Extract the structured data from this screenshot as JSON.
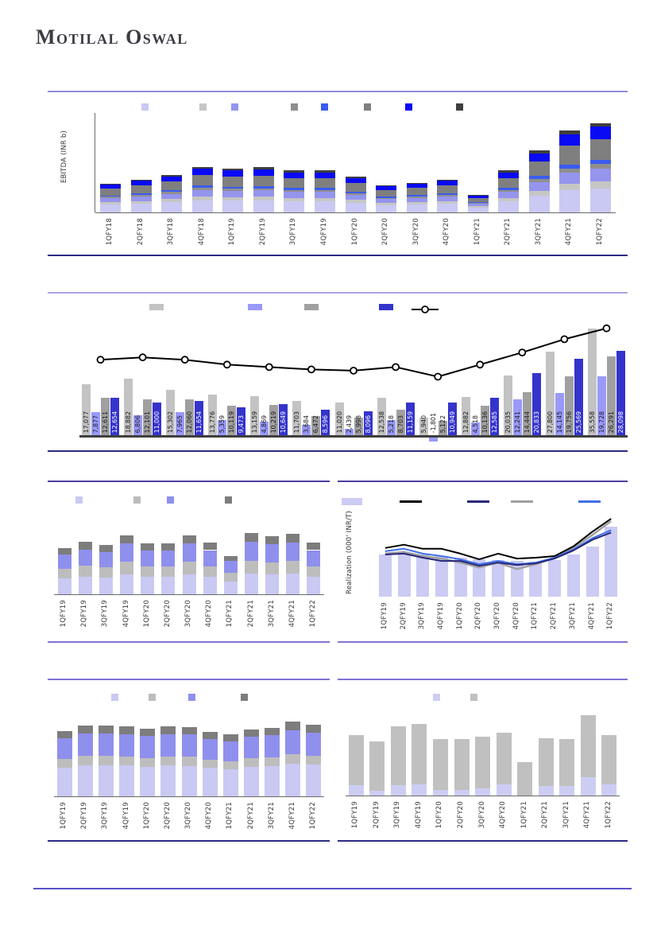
{
  "brand": {
    "name": "Motilal Oswal"
  },
  "chart_data": [
    {
      "id": "quarterly-ebitda-stacked",
      "type": "bar",
      "stacked": true,
      "title": "",
      "ylabel": "EBITDA (INR b)",
      "unit": "percent-of-plot-height (no y-axis ticks shown)",
      "grid": false,
      "legend_position": "top",
      "legend_swatches": [
        "#c9c9f3",
        "#c6c6c6",
        "#9595ee",
        "#8f8f8f",
        "#3a5cf0",
        "#7f7f7f",
        "#0a0af5",
        "#3f3f3f"
      ],
      "categories": [
        "1QFY18",
        "2QFY18",
        "3QFY18",
        "4QFY18",
        "1QFY19",
        "2QFY19",
        "3QFY19",
        "4QFY19",
        "1QFY20",
        "2QFY20",
        "3QFY20",
        "4QFY20",
        "1QFY21",
        "2QFY21",
        "3QFY21",
        "4QFY21",
        "1QFY22"
      ],
      "series": [
        {
          "name": "series-1",
          "color": "#c9c9f3",
          "values": [
            7.8,
            8.9,
            10.3,
            12.4,
            11.9,
            12.2,
            11.3,
            11.3,
            9.7,
            7.3,
            8.1,
            8.9,
            4.9,
            11.3,
            16.7,
            22.1,
            24.3
          ]
        },
        {
          "name": "series-2",
          "color": "#c6c6c6",
          "values": [
            2.3,
            2.6,
            3.0,
            3.7,
            3.5,
            3.6,
            3.4,
            3.4,
            2.9,
            2.2,
            2.4,
            2.6,
            1.4,
            3.4,
            5.0,
            6.6,
            7.2
          ]
        },
        {
          "name": "series-3",
          "color": "#9595ee",
          "values": [
            4.1,
            4.6,
            5.3,
            6.4,
            6.2,
            6.3,
            5.9,
            5.9,
            5.0,
            3.8,
            4.2,
            4.6,
            2.5,
            5.9,
            8.7,
            11.5,
            12.6
          ]
        },
        {
          "name": "series-4",
          "color": "#8f8f8f",
          "values": [
            1.5,
            1.7,
            1.9,
            2.3,
            2.2,
            2.3,
            2.1,
            2.1,
            1.8,
            1.4,
            1.5,
            1.7,
            0.9,
            2.1,
            3.1,
            4.1,
            4.5
          ]
        },
        {
          "name": "series-5",
          "color": "#3a5cf0",
          "values": [
            1.5,
            1.7,
            1.9,
            2.3,
            2.2,
            2.3,
            2.1,
            2.1,
            1.8,
            1.4,
            1.5,
            1.7,
            0.9,
            2.1,
            3.1,
            4.1,
            4.5
          ]
        },
        {
          "name": "series-6",
          "color": "#7f7f7f",
          "values": [
            6.7,
            7.6,
            8.7,
            10.6,
            10.1,
            10.4,
            9.7,
            9.7,
            8.3,
            6.2,
            6.9,
            7.6,
            4.1,
            9.7,
            14.3,
            18.9,
            20.7
          ]
        },
        {
          "name": "series-7",
          "color": "#0a0af5",
          "values": [
            4.1,
            4.6,
            5.3,
            6.4,
            6.2,
            6.3,
            5.9,
            5.9,
            5.0,
            3.8,
            4.2,
            4.6,
            2.5,
            5.9,
            8.7,
            11.5,
            12.6
          ]
        },
        {
          "name": "series-8",
          "color": "#3f3f3f",
          "values": [
            1.2,
            1.3,
            1.5,
            1.8,
            1.8,
            1.8,
            1.7,
            1.7,
            1.4,
            1.1,
            1.2,
            1.3,
            0.7,
            1.7,
            2.5,
            3.3,
            3.6
          ]
        }
      ]
    },
    {
      "id": "quarterly-grouped-bars-with-trend-line",
      "type": "bar+line",
      "stacked": false,
      "categories_visible": false,
      "value_labels": true,
      "axis_max": 40000,
      "legend_position": "top",
      "legend_swatches": [
        "#c3c3c3",
        "#9999fa",
        "#a0a0a0",
        "#3434cc"
      ],
      "line_legend": {
        "color": "#000000",
        "marker": "open-circle"
      },
      "series_colors": [
        "#c3c3c3",
        "#9999fa",
        "#a0a0a0",
        "#3434cc"
      ],
      "groups": [
        [
          17077,
          7877,
          12611,
          12654
        ],
        [
          18882,
          6806,
          12101,
          11000
        ],
        [
          15302,
          7965,
          12060,
          11654
        ],
        [
          13776,
          5359,
          10119,
          9473
        ],
        [
          13159,
          4869,
          10219,
          10649
        ],
        [
          11703,
          3684,
          6472,
          8596
        ],
        [
          11020,
          2439,
          5998,
          8096
        ],
        [
          12538,
          5218,
          8703,
          11159
        ],
        [
          5940,
          -1801,
          5122,
          10949
        ],
        [
          12882,
          4518,
          10136,
          12585
        ],
        [
          20035,
          12241,
          14444,
          20833
        ],
        [
          27800,
          14145,
          19756,
          25569
        ],
        [
          35558,
          19728,
          26291,
          28098
        ]
      ],
      "line_pct": [
        63,
        65,
        63,
        59,
        57,
        55,
        54,
        57,
        49,
        59,
        69,
        80,
        89
      ]
    },
    {
      "id": "stacked-mix-middle-left",
      "type": "bar",
      "stacked": true,
      "unit": "percent-of-plot-height (no y-axis ticks shown)",
      "legend_position": "top",
      "legend_swatches": [
        "#c9c9f3",
        "#bdbdbd",
        "#8f8fee",
        "#7d7d7d"
      ],
      "categories": [
        "1QFY19",
        "2QFY19",
        "3QFY19",
        "4QFY19",
        "1QFY20",
        "2QFY20",
        "3QFY20",
        "4QFY20",
        "1QFY21",
        "2QFY21",
        "3QFY21",
        "4QFY21",
        "1QFY22"
      ],
      "series": [
        {
          "name": "series-1",
          "color": "#c9c9f3",
          "values": [
            20.7,
            23.5,
            22.1,
            26.5,
            22.8,
            22.8,
            26.5,
            23.1,
            17.3,
            27.5,
            26.2,
            27.2,
            23.1
          ]
        },
        {
          "name": "series-2",
          "color": "#bdbdbd",
          "values": [
            12.8,
            14.5,
            13.7,
            16.4,
            14.1,
            14.1,
            16.4,
            14.3,
            10.7,
            17.0,
            16.2,
            16.8,
            14.3
          ]
        },
        {
          "name": "series-3",
          "color": "#8f8fee",
          "values": [
            18.9,
            21.4,
            20.2,
            24.2,
            20.8,
            20.8,
            24.2,
            21.1,
            15.8,
            25.1,
            23.9,
            24.8,
            21.1
          ]
        },
        {
          "name": "series-4",
          "color": "#7d7d7d",
          "values": [
            8.5,
            9.7,
            9.1,
            10.9,
            9.4,
            9.4,
            10.9,
            9.5,
            7.1,
            11.3,
            10.8,
            11.2,
            9.5
          ]
        }
      ]
    },
    {
      "id": "realization-bars-and-lines",
      "type": "bar+line",
      "ylabel": "Realization (000' INR/T)",
      "unit": "percent-of-plot-height (no y-axis ticks shown)",
      "legend_position": "top",
      "categories": [
        "1QFY19",
        "2QFY19",
        "3QFY19",
        "4QFY19",
        "1QFY20",
        "2QFY20",
        "3QFY20",
        "4QFY20",
        "1QFY21",
        "2QFY21",
        "3QFY21",
        "4QFY21",
        "1QFY22"
      ],
      "bars": {
        "color": "#cbcbf4",
        "values_pct": [
          52,
          53,
          52,
          50,
          48,
          46,
          45,
          44,
          43,
          45,
          52,
          62,
          86
        ]
      },
      "lines": [
        {
          "name": "line-1",
          "color": "#000000",
          "values_pct": [
            60,
            64,
            59,
            59,
            53,
            46,
            53,
            47,
            48,
            50,
            62,
            80,
            96
          ]
        },
        {
          "name": "line-2",
          "color": "#28287a",
          "values_pct": [
            52,
            53,
            48,
            44,
            44,
            38,
            42,
            39,
            41,
            47,
            57,
            70,
            79
          ]
        },
        {
          "name": "line-3",
          "color": "#a0a0a0",
          "values_pct": [
            53,
            55,
            50,
            47,
            42,
            36,
            42,
            34,
            40,
            48,
            60,
            76,
            93
          ]
        },
        {
          "name": "line-4",
          "color": "#4070e8",
          "values_pct": [
            56,
            59,
            53,
            50,
            46,
            40,
            44,
            40,
            42,
            48,
            58,
            72,
            82
          ]
        }
      ]
    },
    {
      "id": "stacked-mix-bottom-left",
      "type": "bar",
      "stacked": true,
      "unit": "percent-of-plot-height (no y-axis ticks shown)",
      "legend_position": "top",
      "legend_swatches": [
        "#c9c9f3",
        "#bdbdbd",
        "#8f8fee",
        "#7d7d7d"
      ],
      "categories": [
        "1QFY19",
        "2QFY19",
        "3QFY19",
        "4QFY19",
        "1QFY20",
        "2QFY20",
        "3QFY20",
        "4QFY20",
        "1QFY21",
        "2QFY21",
        "3QFY21",
        "4QFY21",
        "1QFY22"
      ],
      "series": [
        {
          "name": "series-1",
          "color": "#c9c9f3",
          "values": [
            34.3,
            37.4,
            37.4,
            37.0,
            35.6,
            37.0,
            36.5,
            33.9,
            32.6,
            35.2,
            36.1,
            39.2,
            37.8
          ]
        },
        {
          "name": "series-2",
          "color": "#bdbdbd",
          "values": [
            10.1,
            11.1,
            11.1,
            10.9,
            10.5,
            10.9,
            10.8,
            10.0,
            9.6,
            10.4,
            10.7,
            11.6,
            11.2
          ]
        },
        {
          "name": "series-3",
          "color": "#8f8fee",
          "values": [
            25.0,
            27.2,
            27.2,
            26.9,
            25.9,
            26.9,
            26.6,
            24.6,
            23.7,
            25.6,
            26.2,
            28.5,
            27.5
          ]
        },
        {
          "name": "series-4",
          "color": "#7d7d7d",
          "values": [
            8.6,
            9.4,
            9.4,
            9.2,
            8.9,
            9.2,
            9.1,
            8.5,
            8.1,
            8.8,
            9.0,
            9.8,
            9.5
          ]
        }
      ]
    },
    {
      "id": "stacked-two-segment-bottom-right",
      "type": "bar",
      "stacked": true,
      "unit": "percent-of-plot-height (no y-axis ticks shown)",
      "legend_position": "top",
      "legend_swatches": [
        "#cdcdf4",
        "#c0c0c0"
      ],
      "categories": [
        "1QFY19",
        "2QFY19",
        "3QFY19",
        "4QFY19",
        "1QFY20",
        "2QFY20",
        "3QFY20",
        "4QFY20",
        "1QFY21",
        "2QFY21",
        "3QFY21",
        "4QFY21",
        "1QFY22"
      ],
      "series": [
        {
          "name": "series-1",
          "color": "#cdcdf4",
          "values": [
            12,
            6,
            12,
            13,
            7,
            7,
            9,
            13,
            0,
            11,
            11,
            22,
            13
          ]
        },
        {
          "name": "series-2",
          "color": "#c0c0c0",
          "values": [
            60,
            58,
            70,
            72,
            60,
            60,
            61,
            62,
            40,
            57,
            56,
            73,
            59
          ]
        }
      ]
    }
  ]
}
